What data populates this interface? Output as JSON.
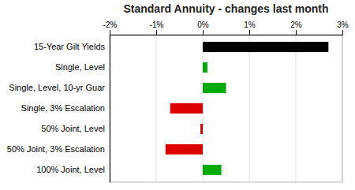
{
  "chart_data": {
    "type": "bar",
    "orientation": "horizontal",
    "title": "Standard Annuity - changes last month",
    "categories": [
      "15-Year Gilt Yields",
      "Single, Level",
      "Single, Level, 10-yr Guar",
      "Single, 3% Escalation",
      "50% Joint, Level",
      "50% Joint, 3% Escalation",
      "100% Joint, Level"
    ],
    "values": [
      2.7,
      0.1,
      0.5,
      -0.7,
      -0.05,
      -0.8,
      0.4
    ],
    "colors": [
      "#000000",
      "#00aa00",
      "#00aa00",
      "#dd0000",
      "#dd0000",
      "#dd0000",
      "#00aa00"
    ],
    "xlim": [
      -2.0,
      3.0
    ],
    "xticks": [
      {
        "value": -2,
        "label": "-2%"
      },
      {
        "value": -1,
        "label": "-1%"
      },
      {
        "value": 0,
        "label": "0%"
      },
      {
        "value": 1,
        "label": "1%"
      },
      {
        "value": 2,
        "label": "2%"
      },
      {
        "value": 3,
        "label": "3%"
      }
    ],
    "grid": true
  }
}
